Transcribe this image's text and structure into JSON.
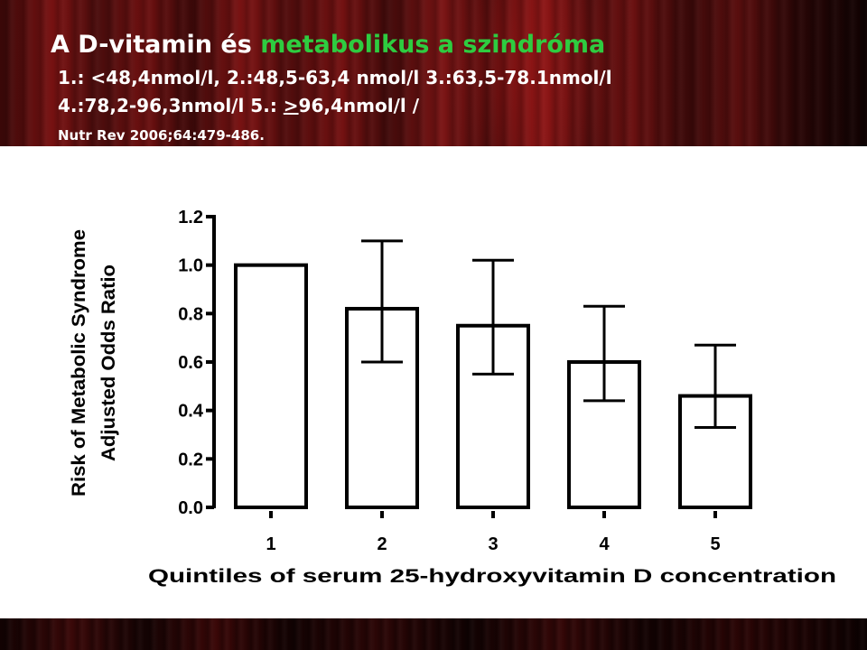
{
  "slide": {
    "title_part1": "A D-vitamin és ",
    "title_part2": "metabolikus a szindróma",
    "line1": "1.: <48,4nmol/l, 2.:48,5-63,4 nmol/l 3.:63,5-78.1nmol/l",
    "line2_a": "4.:78,2-96,3nmol/l  5.: ",
    "line2_b": ">",
    "line2_c": "96,4nmol/l /",
    "reference": "Nutr Rev 2006;64:479-486."
  },
  "colors": {
    "accent_green": "#2ecc40",
    "header_bg": "#6e1010",
    "text": "#ffffff"
  },
  "chart_data": {
    "type": "bar",
    "categories": [
      "1",
      "2",
      "3",
      "4",
      "5"
    ],
    "values": [
      1.0,
      0.82,
      0.75,
      0.6,
      0.46
    ],
    "error_low": [
      null,
      0.6,
      0.55,
      0.44,
      0.33
    ],
    "error_high": [
      null,
      1.1,
      1.02,
      0.83,
      0.67
    ],
    "ylim": [
      0.0,
      1.2
    ],
    "yticks": [
      "0.0",
      "0.2",
      "0.4",
      "0.6",
      "0.8",
      "1.0",
      "1.2"
    ],
    "xlabel": "Quintiles of serum 25-hydroxyvitamin D concentration",
    "ylabel_line1": "Risk of Metabolic Syndrome",
    "ylabel_line2": "Adjusted Odds Ratio",
    "grid": false,
    "bar_fill": "#ffffff",
    "bar_stroke": "#000000"
  }
}
